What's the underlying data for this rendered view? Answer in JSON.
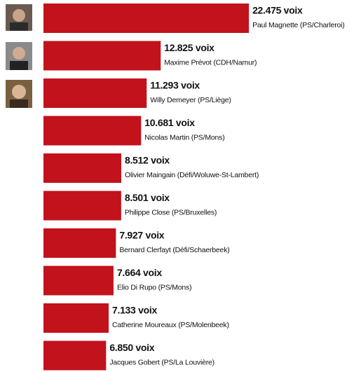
{
  "chart_data": {
    "type": "bar",
    "orientation": "horizontal",
    "categories": [
      "Paul Magnette (PS/Charleroi)",
      "Maxime Prévot (CDH/Namur)",
      "Willy Demeyer (PS/Liège)",
      "Nicolas Martin (PS/Mons)",
      "Olivier Maingain (Défi/Woluwe-St-Lambert)",
      "Philippe Close (PS/Bruxelles)",
      "Bernard Clerfayt (Défi/Schaerbeek)",
      "Elio Di Rupo (PS/Mons)",
      "Catherine Moureaux (PS/Molenbeek)",
      "Jacques Gobert (PS/La Louvière)"
    ],
    "values": [
      22475,
      12825,
      11293,
      10681,
      8512,
      8501,
      7927,
      7664,
      7133,
      6850
    ],
    "value_labels": [
      "22.475 voix",
      "12.825 voix",
      "11.293 voix",
      "10.681 voix",
      "8.512 voix",
      "8.501 voix",
      "7.927 voix",
      "7.664 voix",
      "7.133 voix",
      "6.850 voix"
    ],
    "color": "#c2121c"
  }
}
